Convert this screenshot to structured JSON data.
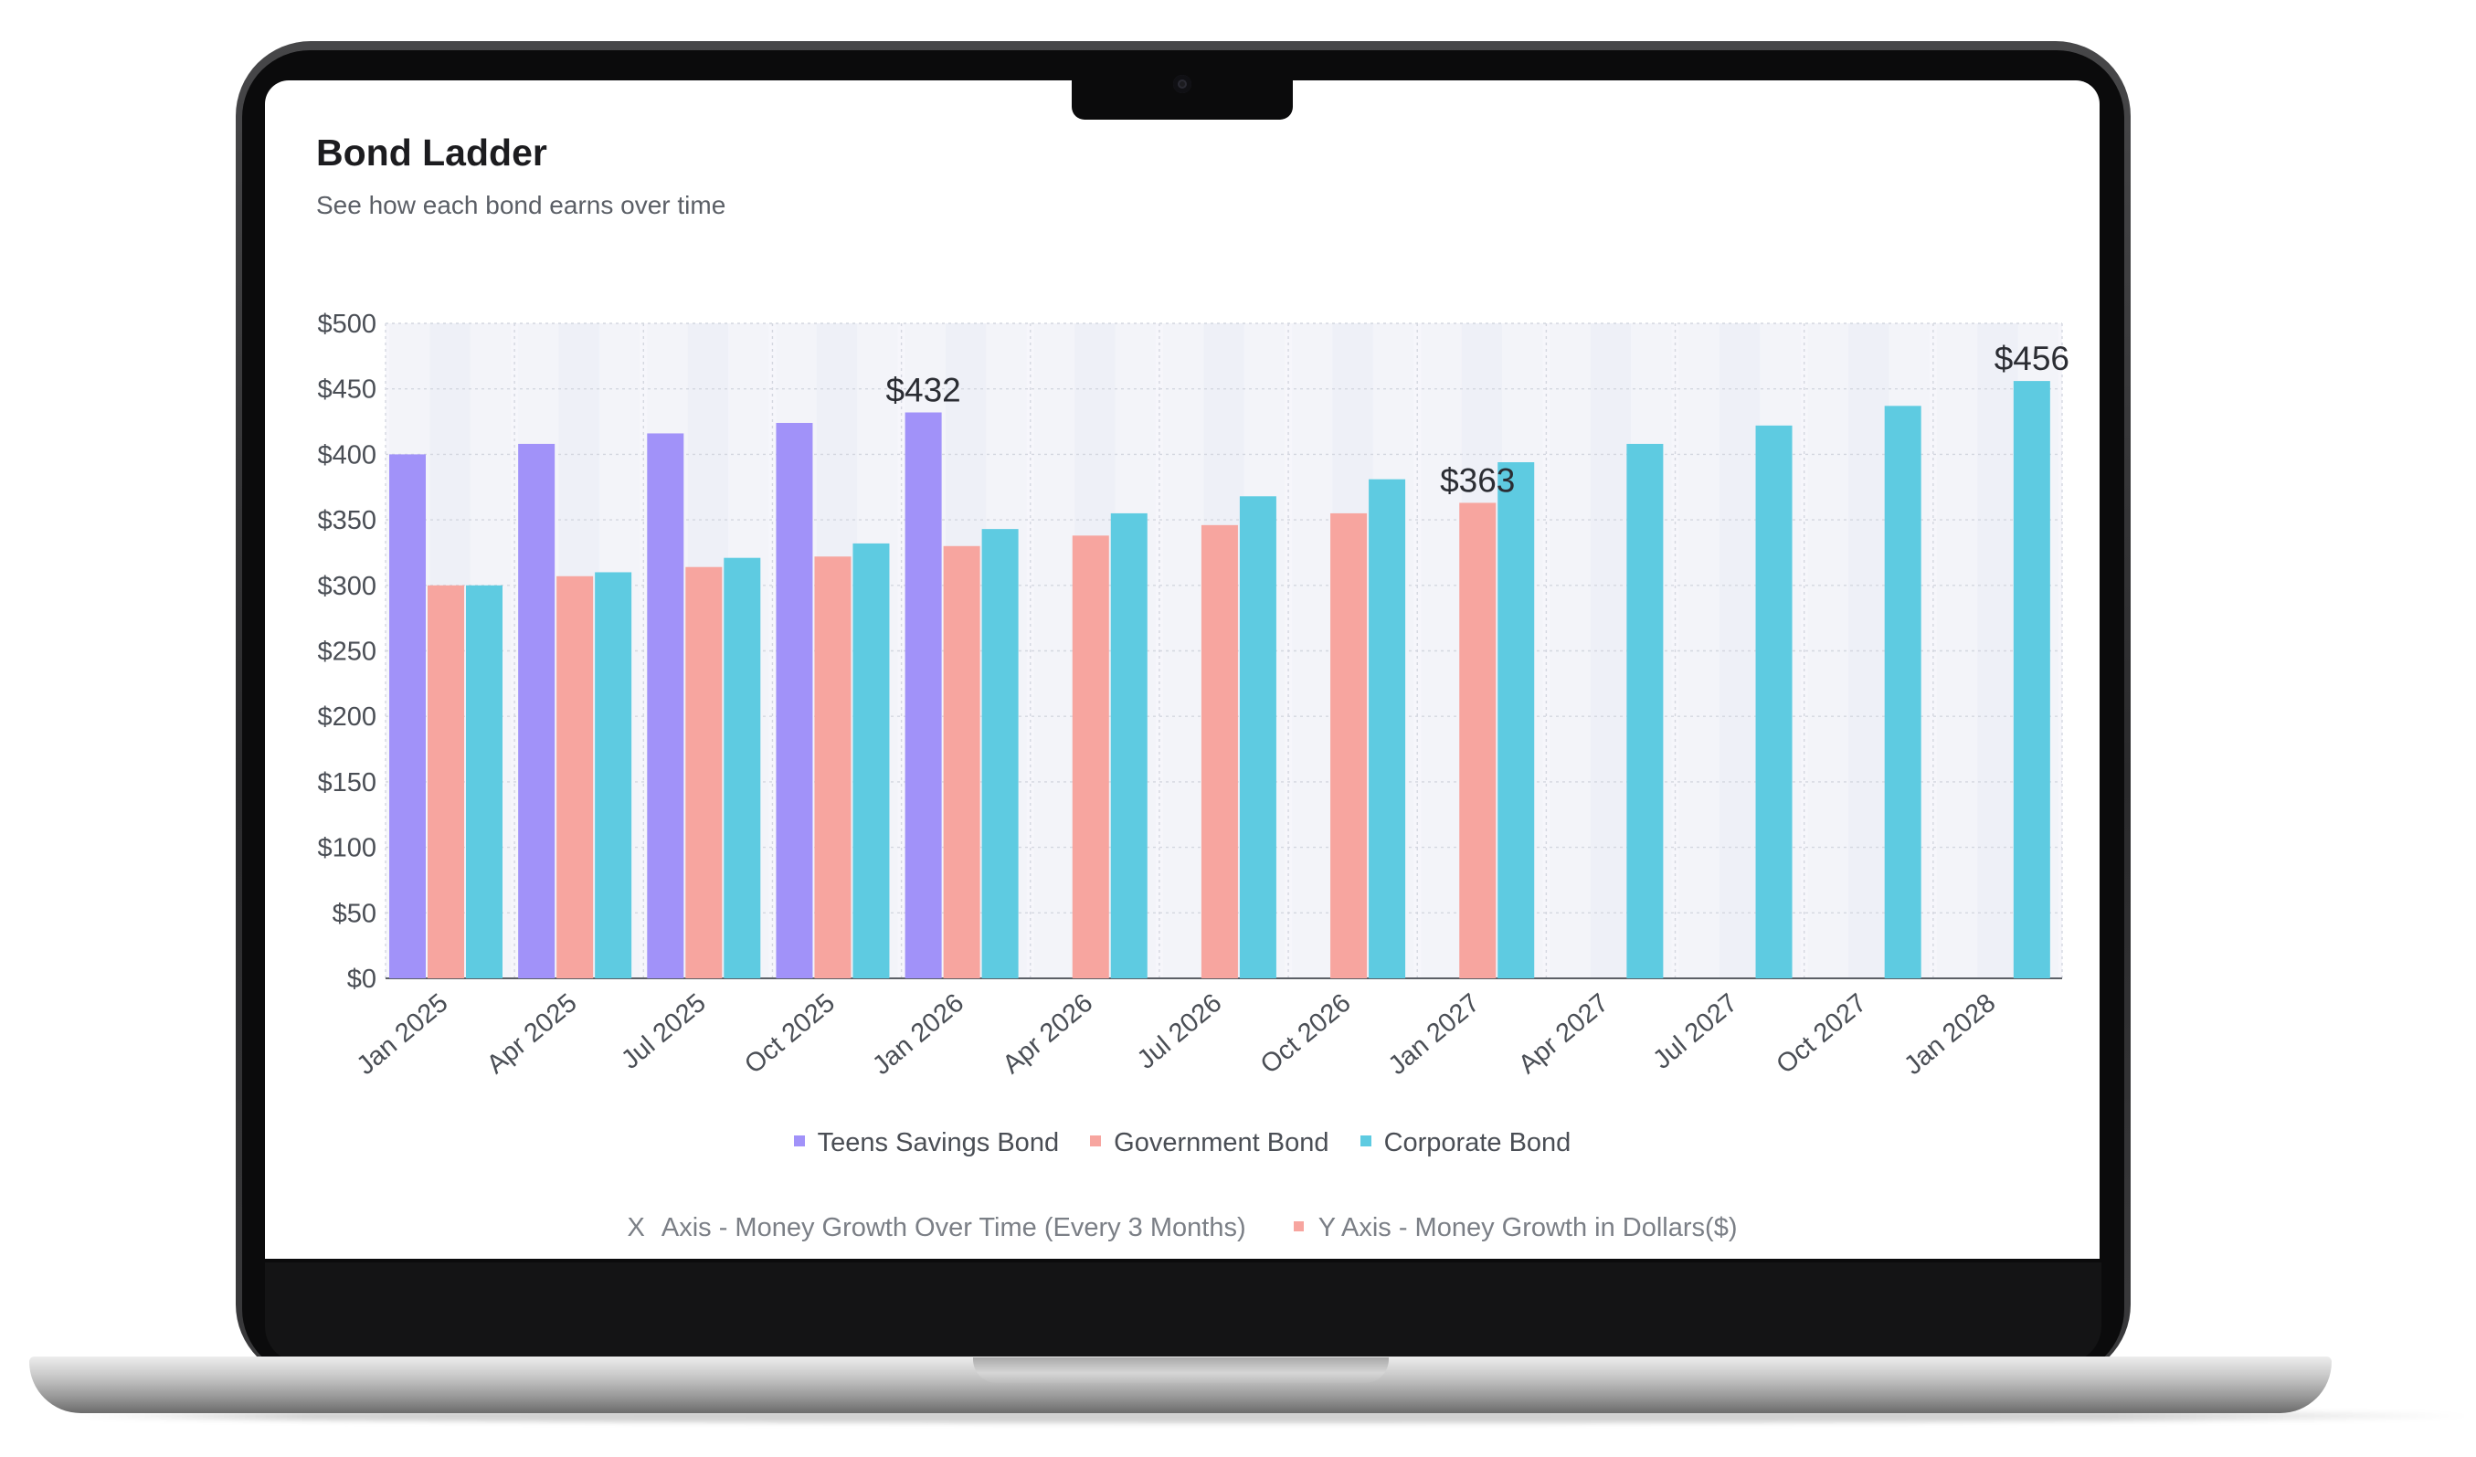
{
  "header": {
    "title": "Bond Ladder",
    "subtitle": "See how each bond earns over time"
  },
  "legend": [
    {
      "label": "Teens Savings Bond",
      "color": "#a192f9"
    },
    {
      "label": "Government Bond",
      "color": "#f7a59f"
    },
    {
      "label": "Corporate Bond",
      "color": "#5ecbe1"
    }
  ],
  "axis_note": {
    "x_marker": "X",
    "x_label": "Axis - Money Growth Over Time (Every 3 Months)",
    "y_label": "Y Axis - Money Growth in Dollars($)",
    "y_color": "#f7a59f"
  },
  "chart_data": {
    "type": "bar",
    "title": "Bond Ladder",
    "subtitle": "See how each bond earns over time",
    "xlabel": "Money Growth Over Time (Every 3 Months)",
    "ylabel": "Money Growth in Dollars($)",
    "ylim": [
      0,
      500
    ],
    "y_ticks": [
      "$0",
      "$50",
      "$100",
      "$150",
      "$200",
      "$250",
      "$300",
      "$350",
      "$400",
      "$450",
      "$500"
    ],
    "y_tick_values": [
      0,
      50,
      100,
      150,
      200,
      250,
      300,
      350,
      400,
      450,
      500
    ],
    "categories": [
      "Jan 2025",
      "Apr 2025",
      "Jul 2025",
      "Oct 2025",
      "Jan 2026",
      "Apr 2026",
      "Jul 2026",
      "Oct 2026",
      "Jan 2027",
      "Apr 2027",
      "Jul 2027",
      "Oct 2027",
      "Jan 2028"
    ],
    "series": [
      {
        "name": "Teens Savings Bond",
        "color": "#a192f9",
        "values": [
          400,
          408,
          416,
          424,
          432,
          null,
          null,
          null,
          null,
          null,
          null,
          null,
          null
        ]
      },
      {
        "name": "Government Bond",
        "color": "#f7a59f",
        "values": [
          300,
          307,
          314,
          322,
          330,
          338,
          346,
          355,
          363,
          null,
          null,
          null,
          null
        ]
      },
      {
        "name": "Corporate Bond",
        "color": "#5ecbe1",
        "values": [
          300,
          310,
          321,
          332,
          343,
          355,
          368,
          381,
          394,
          408,
          422,
          437,
          456
        ]
      }
    ],
    "annotations": [
      {
        "series": "Teens Savings Bond",
        "category": "Jan 2026",
        "text": "$432"
      },
      {
        "series": "Government Bond",
        "category": "Jan 2027",
        "text": "$363"
      },
      {
        "series": "Corporate Bond",
        "category": "Jan 2028",
        "text": "$456"
      }
    ],
    "grid": true,
    "legend_position": "bottom"
  }
}
